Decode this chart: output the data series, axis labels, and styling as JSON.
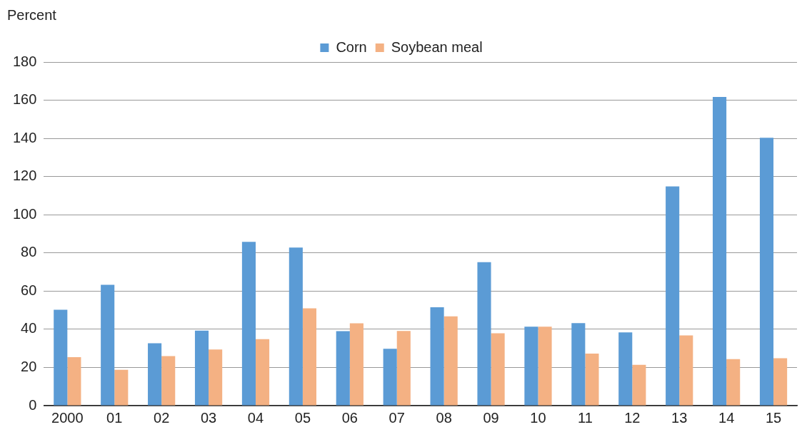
{
  "chart_data": {
    "type": "bar",
    "ylabel": "Percent",
    "categories": [
      "2000",
      "01",
      "02",
      "03",
      "04",
      "05",
      "06",
      "07",
      "08",
      "09",
      "10",
      "11",
      "12",
      "13",
      "14",
      "15"
    ],
    "series": [
      {
        "name": "Corn",
        "color": "#5b9bd5",
        "values": [
          50.2,
          63.3,
          32.7,
          39.3,
          85.8,
          82.8,
          39,
          29.8,
          51.5,
          75.2,
          41.4,
          43.2,
          38.4,
          114.8,
          161.7,
          140.3
        ]
      },
      {
        "name": "Soybean meal",
        "color": "#f4b183",
        "values": [
          25.4,
          18.8,
          26,
          29.4,
          34.8,
          51,
          43.1,
          39.1,
          46.8,
          37.9,
          41.4,
          27.3,
          21.4,
          36.8,
          24.4,
          24.8
        ]
      }
    ],
    "ylim": [
      0,
      180
    ],
    "yticks": [
      0,
      20,
      40,
      60,
      80,
      100,
      120,
      140,
      160,
      180
    ],
    "grid": "y",
    "legend": "top"
  }
}
